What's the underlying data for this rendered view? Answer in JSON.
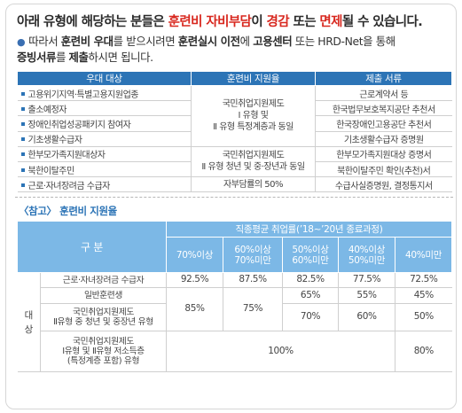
{
  "headline": {
    "p1": "아래 유형에 해당하는 분들은 ",
    "h1": "훈련비 자비부담",
    "p2": "이 ",
    "h2": "경감",
    "p3": " 또는 ",
    "h3": "면제",
    "p4": "될 수 있습니다."
  },
  "notice": {
    "s1": "따라서 ",
    "b1": "훈련비 우대",
    "s2": "를 받으시려면 ",
    "b2": "훈련실시 이전",
    "s3": "에 ",
    "b3": "고용센터",
    "s4": " 또는 HRD-Net을 통해",
    "b4": "증빙서류",
    "s5": "를 ",
    "b5": "제출",
    "s6": "하시면 됩니다."
  },
  "support_table": {
    "headers": [
      "우대 대상",
      "훈련비 지원율",
      "제출 서류"
    ],
    "targets": [
      "고용위기지역·특별고용지원업종",
      "출소예정자",
      "장애인취업성공패키지 참여자",
      "기초생활수급자",
      "한부모가족지원대상자",
      "북한이탈주민",
      "근로·자녀장려금 수급자"
    ],
    "rates": [
      [
        "국민취업지원제도",
        "Ⅰ 유형 및",
        "Ⅱ 유형 특정계층과 동일"
      ],
      [
        "국민취업지원제도",
        "Ⅱ 유형 청년 및 중·장년과 동일"
      ],
      [
        "자부담률의 50%"
      ]
    ],
    "documents": [
      "근로계약서 등",
      "한국법무보호복지공단 추천서",
      "한국장애인고용공단 추천서",
      "기초생활수급자 증명원",
      "한부모가족지원대상 증명서",
      "북한이탈주민 확인(추천)서",
      "수급사실증명원, 결정통지서"
    ]
  },
  "reference": {
    "title": "〈참고〉 훈련비 지원율",
    "gubun": "구 분",
    "group_header": "직종평균 취업률(’18~’20년 종료과정)",
    "columns": [
      [
        "70%이상"
      ],
      [
        "60%이상",
        "70%미만"
      ],
      [
        "50%이상",
        "60%미만"
      ],
      [
        "40%이상",
        "50%미만"
      ],
      [
        "40%미만"
      ]
    ],
    "daesang": [
      "대",
      "상"
    ],
    "rows": [
      {
        "label": [
          "근로·자녀장려금 수급자"
        ],
        "values": [
          "92.5%",
          "87.5%",
          "82.5%",
          "77.5%",
          "72.5%"
        ]
      },
      {
        "label": [
          "일반훈련생"
        ],
        "values": [
          "65%",
          "55%",
          "45%"
        ]
      },
      {
        "label": [
          "국민취업지원제도",
          "Ⅱ유형 중 청년 및 중장년 유형"
        ],
        "values": [
          "70%",
          "60%",
          "50%"
        ]
      },
      {
        "label": [
          "국민취업지원제도",
          "Ⅰ유형 및 Ⅱ유형 저소득층",
          "(특정계층 포함) 유형"
        ],
        "values": [
          "100%",
          "80%"
        ]
      }
    ],
    "merged": {
      "c1": "85%",
      "c2": "75%"
    }
  }
}
